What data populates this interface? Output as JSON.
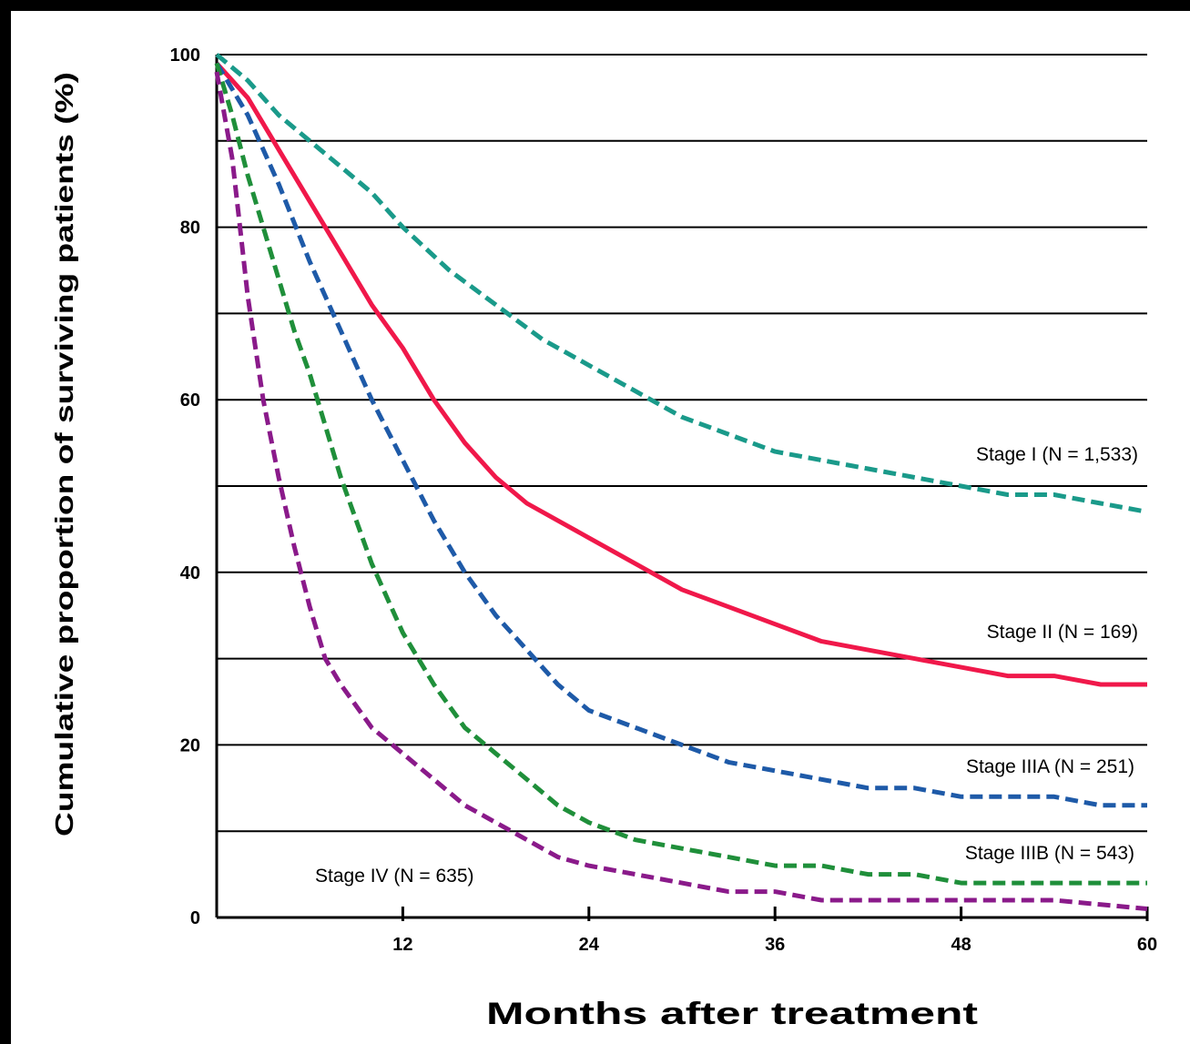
{
  "chart_data": {
    "type": "line",
    "xlabel": "Months after treatment",
    "ylabel": "Cumulative proportion of surviving patients (%)",
    "xlim": [
      0,
      60
    ],
    "ylim": [
      0,
      100
    ],
    "xticks": [
      12,
      24,
      36,
      48,
      60
    ],
    "yticks": [
      0,
      20,
      40,
      60,
      80,
      100
    ],
    "grid": "horizontal lines every 10",
    "series": [
      {
        "name": "Stage I (N = 1,533)",
        "color": "#1a9a8a",
        "style": "dashed",
        "x": [
          0,
          2,
          4,
          6,
          8,
          10,
          12,
          15,
          18,
          21,
          24,
          27,
          30,
          33,
          36,
          39,
          42,
          45,
          48,
          51,
          54,
          57,
          60
        ],
        "values": [
          100,
          97,
          93,
          90,
          87,
          84,
          80,
          75,
          71,
          67,
          64,
          61,
          58,
          56,
          54,
          53,
          52,
          51,
          50,
          49,
          49,
          48,
          47
        ]
      },
      {
        "name": "Stage II (N = 169)",
        "color": "#f0184a",
        "style": "solid",
        "x": [
          0,
          2,
          4,
          6,
          8,
          10,
          12,
          14,
          16,
          18,
          20,
          22,
          24,
          27,
          30,
          33,
          36,
          39,
          42,
          45,
          48,
          51,
          54,
          57,
          60
        ],
        "values": [
          99,
          95,
          89,
          83,
          77,
          71,
          66,
          60,
          55,
          51,
          48,
          46,
          44,
          41,
          38,
          36,
          34,
          32,
          31,
          30,
          29,
          28,
          28,
          27,
          27
        ]
      },
      {
        "name": "Stage IIIA (N = 251)",
        "color": "#1e5aa8",
        "style": "dashed",
        "x": [
          0,
          2,
          4,
          6,
          8,
          10,
          12,
          14,
          16,
          18,
          20,
          22,
          24,
          27,
          30,
          33,
          36,
          39,
          42,
          45,
          48,
          51,
          54,
          57,
          60
        ],
        "values": [
          99,
          93,
          85,
          76,
          68,
          60,
          53,
          46,
          40,
          35,
          31,
          27,
          24,
          22,
          20,
          18,
          17,
          16,
          15,
          15,
          14,
          14,
          14,
          13,
          13
        ]
      },
      {
        "name": "Stage IIIB (N = 543)",
        "color": "#1f8f3a",
        "style": "dashed",
        "x": [
          0,
          1,
          2,
          3,
          4,
          5,
          6,
          8,
          10,
          12,
          14,
          16,
          18,
          20,
          22,
          24,
          27,
          30,
          33,
          36,
          39,
          42,
          45,
          48,
          51,
          54,
          57,
          60
        ],
        "values": [
          99,
          93,
          86,
          80,
          74,
          68,
          63,
          51,
          41,
          33,
          27,
          22,
          19,
          16,
          13,
          11,
          9,
          8,
          7,
          6,
          6,
          5,
          5,
          4,
          4,
          4,
          4,
          4
        ]
      },
      {
        "name": "Stage IV (N = 635)",
        "color": "#8a1a8a",
        "style": "dashed",
        "x": [
          0,
          0.5,
          1,
          1.5,
          2,
          3,
          4,
          5,
          6,
          7,
          8,
          10,
          12,
          14,
          16,
          18,
          20,
          22,
          24,
          27,
          30,
          33,
          36,
          39,
          42,
          45,
          48,
          51,
          54,
          57,
          60
        ],
        "values": [
          98,
          93,
          88,
          80,
          72,
          60,
          51,
          43,
          36,
          30,
          27,
          22,
          19,
          16,
          13,
          11,
          9,
          7,
          6,
          5,
          4,
          3,
          3,
          2,
          2,
          2,
          2,
          2,
          2,
          1.5,
          1
        ]
      }
    ]
  }
}
